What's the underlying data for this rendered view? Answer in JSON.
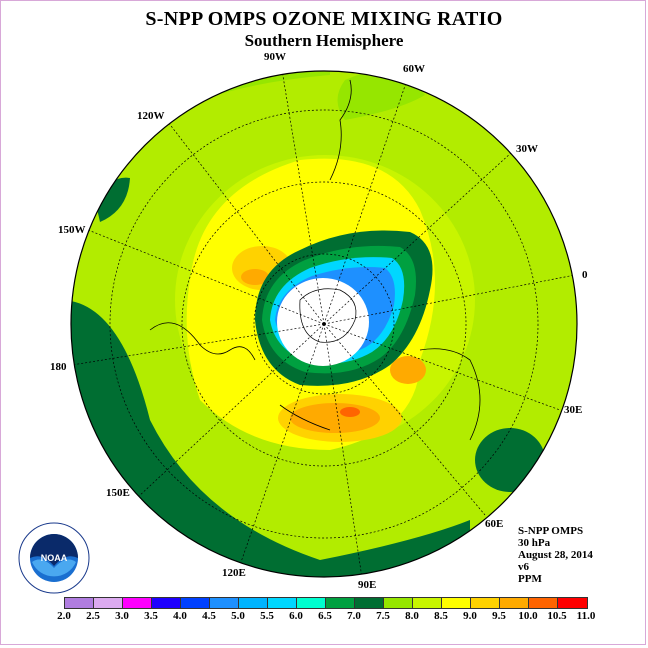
{
  "header": {
    "title": "S-NPP OMPS OZONE MIXING RATIO",
    "subtitle": "Southern Hemisphere"
  },
  "map": {
    "projection": "south polar stereographic",
    "longitude_labels": [
      "90W",
      "60W",
      "30W",
      "0",
      "30E",
      "60E",
      "90E",
      "120E",
      "150E",
      "180",
      "150W",
      "120W"
    ]
  },
  "info": {
    "instrument": "S-NPP OMPS",
    "level": "30 hPa",
    "date": "August 28, 2014",
    "version": "v6",
    "units": "PPM"
  },
  "logo": {
    "text": "NOAA",
    "ring_text": "NATIONAL OCEANIC AND ATMOSPHERIC ADMINISTRATION"
  },
  "colorbar": {
    "ticks": [
      "2.0",
      "2.5",
      "3.0",
      "3.5",
      "4.0",
      "4.5",
      "5.0",
      "5.5",
      "6.0",
      "6.5",
      "7.0",
      "7.5",
      "8.0",
      "8.5",
      "9.0",
      "9.5",
      "10.0",
      "10.5",
      "11.0"
    ],
    "colors": [
      "#b07de0",
      "#dcaaf0",
      "#ff00ff",
      "#1e00ff",
      "#0040ff",
      "#1e90ff",
      "#00b4ff",
      "#00d7ff",
      "#00ffd0",
      "#00a040",
      "#006e32",
      "#96e600",
      "#c8f500",
      "#ffff00",
      "#ffd200",
      "#ffaa00",
      "#ff6400",
      "#ff0000",
      "#7a4a30"
    ]
  },
  "chart_data": {
    "type": "map",
    "field": "ozone mixing ratio",
    "units": "PPM",
    "level": "30 hPa",
    "value_range": [
      2.0,
      11.0
    ],
    "regions": [
      {
        "area": "polar vortex core (over Antarctica)",
        "value_range": [
          2.0,
          4.5
        ]
      },
      {
        "area": "vortex edge ring",
        "value_range": [
          4.5,
          7.0
        ]
      },
      {
        "area": "mid-latitudes",
        "value_range": [
          7.0,
          8.5
        ]
      },
      {
        "area": "ozone maxima near 90E and 120W",
        "value_range": [
          8.5,
          10.0
        ]
      },
      {
        "area": "outer edge near 180 and 60E",
        "value_range": [
          6.5,
          7.0
        ]
      }
    ]
  }
}
